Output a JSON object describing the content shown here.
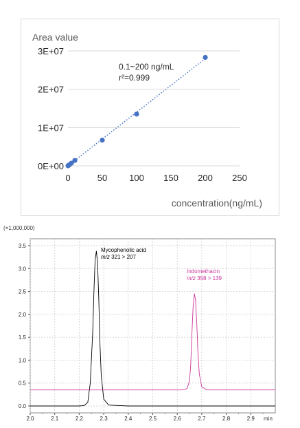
{
  "chart_data": [
    {
      "type": "scatter",
      "title": "",
      "ylabel": "Area value",
      "xlabel": "concentration(ng/mL)",
      "xlim": [
        0,
        250
      ],
      "ylim": [
        0,
        30000000
      ],
      "x_ticks": [
        "0",
        "50",
        "100",
        "150",
        "200",
        "250"
      ],
      "y_ticks": [
        "0E+00",
        "1E+07",
        "2E+07",
        "3E+07"
      ],
      "series": [
        {
          "x": [
            0.1,
            0.5,
            1,
            2,
            5,
            10,
            50,
            100,
            200
          ],
          "y": [
            14000,
            70000,
            140000,
            280000,
            700000,
            1400000,
            6700000,
            13500000,
            28300000
          ]
        }
      ],
      "trendline": {
        "style": "dotted",
        "x": [
          0,
          200
        ],
        "y": [
          0,
          28000000
        ]
      },
      "annotations": [
        "0.1~200 ng/mL",
        "r²=0.999"
      ],
      "grid": "horizontal",
      "marker_color": "#4472c4"
    },
    {
      "type": "line",
      "multiplier_label": "(×1,000,000)",
      "xlabel_unit": "min",
      "xlim": [
        2.0,
        3.0
      ],
      "ylim": [
        -0.15,
        3.65
      ],
      "x_ticks": [
        "2.0",
        "2.1",
        "2.2",
        "2.3",
        "2.4",
        "2.5",
        "2.6",
        "2.7",
        "2.8",
        "2.9"
      ],
      "y_ticks": [
        "0.0",
        "0.5",
        "1.0",
        "1.5",
        "2.0",
        "2.5",
        "3.0",
        "3.5"
      ],
      "series": [
        {
          "name": "Mycophenolic acid",
          "transition": "321 > 207",
          "color": "#000000",
          "x": [
            2.0,
            2.2,
            2.22,
            2.235,
            2.245,
            2.255,
            2.26,
            2.265,
            2.27,
            2.275,
            2.28,
            2.285,
            2.29,
            2.3,
            2.32,
            2.4,
            3.0
          ],
          "y": [
            0.0,
            0.0,
            0.01,
            0.08,
            0.5,
            1.6,
            2.5,
            3.2,
            3.38,
            3.1,
            2.3,
            1.3,
            0.65,
            0.15,
            0.02,
            0.0,
            0.0
          ]
        },
        {
          "name": "Indomethacin",
          "transition": "358 > 139",
          "color": "#cc3399",
          "x": [
            2.0,
            2.62,
            2.64,
            2.65,
            2.655,
            2.66,
            2.665,
            2.67,
            2.675,
            2.68,
            2.685,
            2.69,
            2.7,
            2.72,
            3.0
          ],
          "y": [
            0.35,
            0.35,
            0.38,
            0.55,
            0.9,
            1.6,
            2.2,
            2.45,
            2.3,
            1.75,
            1.1,
            0.7,
            0.42,
            0.35,
            0.35
          ]
        }
      ],
      "peak_labels": [
        {
          "name": "Mycophenolic acid",
          "mz_prefix": "m/z",
          "mz_value": " 321 > 207"
        },
        {
          "name": "Indomethacin",
          "mz_prefix": "m/z",
          "mz_value": " 358 > 139"
        }
      ]
    }
  ]
}
